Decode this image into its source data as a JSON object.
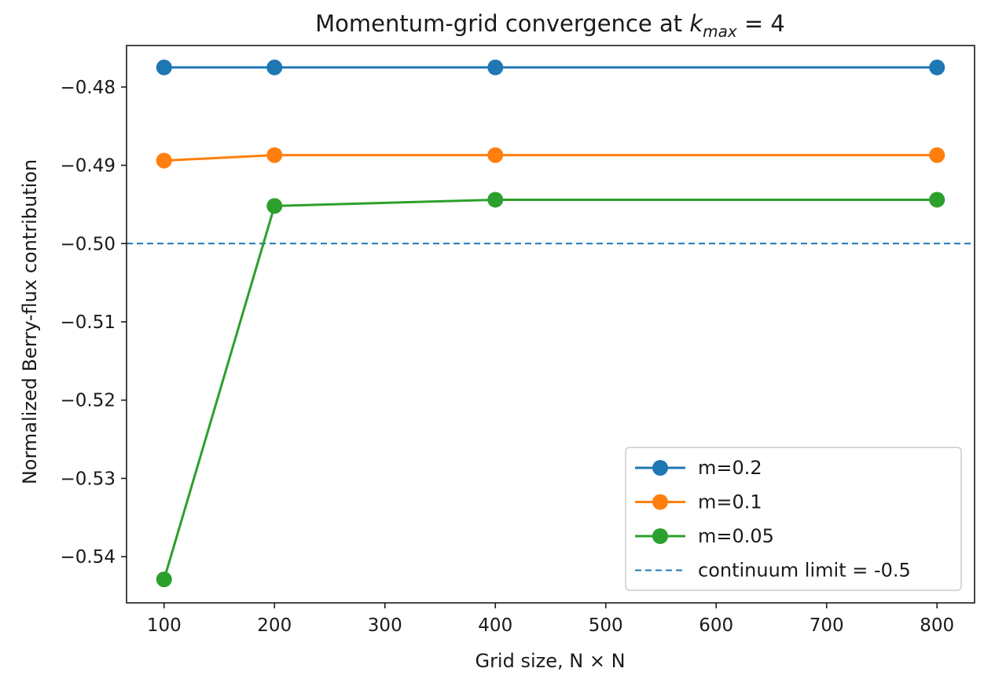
{
  "chart_data": {
    "type": "line",
    "title_main": "Momentum-grid convergence at ",
    "title_math_var": "k",
    "title_math_sub": "max",
    "title_math_rest": " = 4",
    "xlabel": "Grid size, N × N",
    "ylabel": "Normalized Berry-flux contribution",
    "x": [
      100,
      200,
      400,
      800
    ],
    "xlim": [
      66,
      834
    ],
    "ylim": [
      -0.5459,
      -0.4747
    ],
    "xticks": [
      100,
      200,
      300,
      400,
      500,
      600,
      700,
      800
    ],
    "xtick_labels": [
      "100",
      "200",
      "300",
      "400",
      "500",
      "600",
      "700",
      "800"
    ],
    "yticks": [
      -0.48,
      -0.49,
      -0.5,
      -0.51,
      -0.52,
      -0.53,
      -0.54
    ],
    "ytick_labels": [
      "−0.48",
      "−0.49",
      "−0.50",
      "−0.51",
      "−0.52",
      "−0.53",
      "−0.54"
    ],
    "grid": false,
    "legend_position": "lower-right",
    "series": [
      {
        "name": "m=0.2",
        "color": "#1f77b4",
        "values": [
          -0.4775,
          -0.4775,
          -0.4775,
          -0.4775
        ]
      },
      {
        "name": "m=0.1",
        "color": "#ff7f0e",
        "values": [
          -0.4894,
          -0.4887,
          -0.4887,
          -0.4887
        ]
      },
      {
        "name": "m=0.05",
        "color": "#2ca02c",
        "values": [
          -0.5429,
          -0.4952,
          -0.4944,
          -0.4944
        ]
      }
    ],
    "reference_line": {
      "name": "continuum limit = -0.5",
      "value": -0.5,
      "color": "#1f77b4",
      "style": "dashed"
    }
  }
}
